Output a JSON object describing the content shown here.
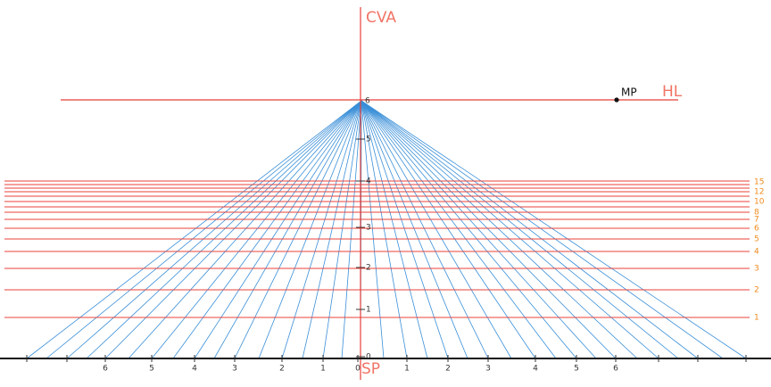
{
  "labels": {
    "cva": "CVA",
    "hl": "HL",
    "mp": "MP",
    "sp": "SP",
    "vp": "6"
  },
  "vertical_scale": [
    "0",
    "1",
    "2",
    "3",
    "4",
    "5"
  ],
  "ground_scale": [
    "6",
    "5",
    "4",
    "3",
    "2",
    "1",
    "0",
    "1",
    "2",
    "3",
    "4",
    "5",
    "6"
  ],
  "depth_scale": [
    "1",
    "2",
    "3",
    "4",
    "5",
    "6",
    "7",
    "8",
    "10",
    "12",
    "15"
  ]
}
